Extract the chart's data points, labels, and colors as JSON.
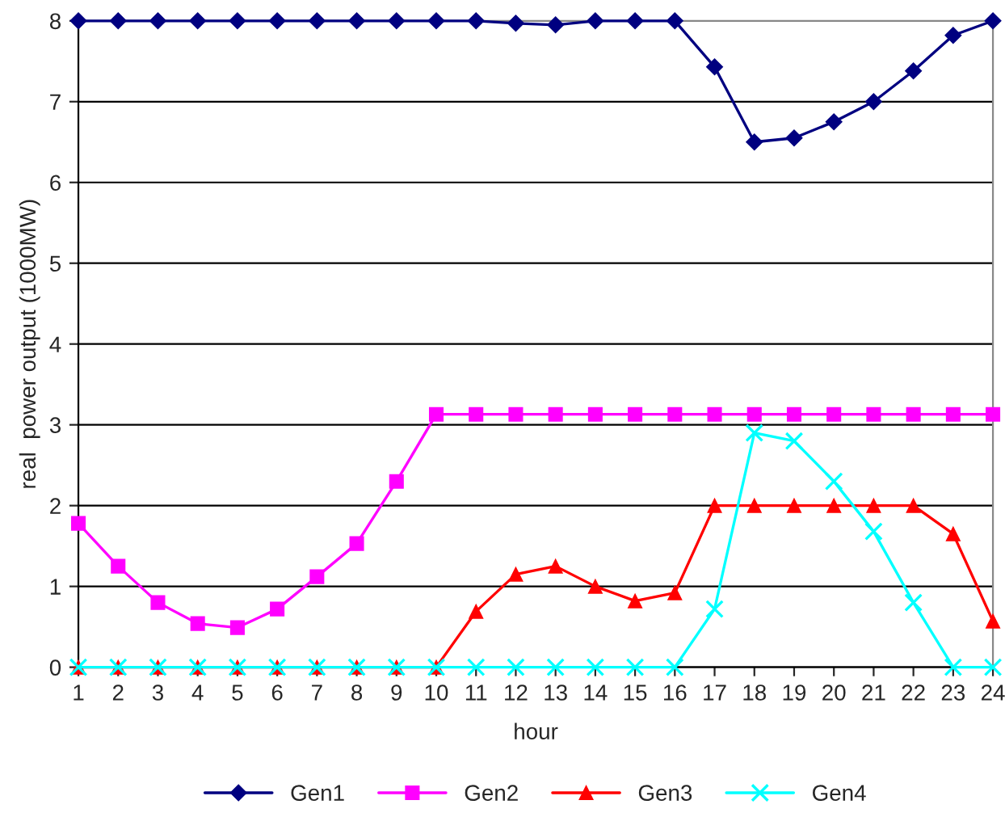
{
  "chart_data": {
    "type": "line",
    "xlabel": "hour",
    "ylabel": "real  power output (1000MW)",
    "x": [
      1,
      2,
      3,
      4,
      5,
      6,
      7,
      8,
      9,
      10,
      11,
      12,
      13,
      14,
      15,
      16,
      17,
      18,
      19,
      20,
      21,
      22,
      23,
      24
    ],
    "xlim": [
      1,
      24
    ],
    "xticks": [
      1,
      2,
      3,
      4,
      5,
      6,
      7,
      8,
      9,
      10,
      11,
      12,
      13,
      14,
      15,
      16,
      17,
      18,
      19,
      20,
      21,
      22,
      23,
      24
    ],
    "ylim": [
      0,
      8
    ],
    "yticks": [
      0,
      1,
      2,
      3,
      4,
      5,
      6,
      7,
      8
    ],
    "grid": "y",
    "legend": "bottom",
    "series": [
      {
        "name": "Gen1",
        "color": "#000080",
        "marker": "diamond",
        "values": [
          8,
          8,
          8,
          8,
          8,
          8,
          8,
          8,
          8,
          8,
          8,
          7.97,
          7.95,
          8,
          8,
          8,
          7.43,
          6.5,
          6.55,
          6.75,
          7.0,
          7.38,
          7.82,
          8
        ]
      },
      {
        "name": "Gen2",
        "color": "#ff00ff",
        "marker": "square",
        "values": [
          1.78,
          1.25,
          0.8,
          0.54,
          0.49,
          0.72,
          1.12,
          1.53,
          2.3,
          3.13,
          3.13,
          3.13,
          3.13,
          3.13,
          3.13,
          3.13,
          3.13,
          3.13,
          3.13,
          3.13,
          3.13,
          3.13,
          3.13,
          3.13
        ]
      },
      {
        "name": "Gen3",
        "color": "#ff0000",
        "marker": "triangle",
        "values": [
          0,
          0,
          0,
          0,
          0,
          0,
          0,
          0,
          0,
          0,
          0.69,
          1.15,
          1.25,
          1.0,
          0.82,
          0.92,
          2,
          2,
          2,
          2,
          2,
          2,
          1.65,
          0.57
        ]
      },
      {
        "name": "Gen4",
        "color": "#00ffff",
        "marker": "cross",
        "values": [
          0,
          0,
          0,
          0,
          0,
          0,
          0,
          0,
          0,
          0,
          0,
          0,
          0,
          0,
          0,
          0,
          0.72,
          2.9,
          2.8,
          2.3,
          1.68,
          0.8,
          0,
          0
        ]
      }
    ]
  }
}
